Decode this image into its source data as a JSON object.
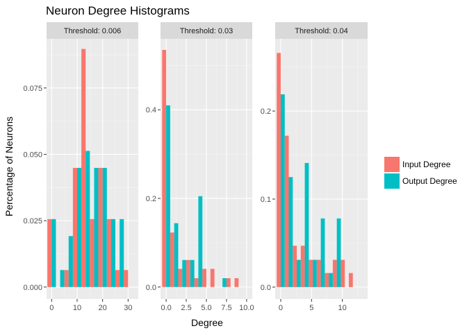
{
  "chart_data": {
    "type": "bar",
    "title": "Neuron Degree Histograms",
    "xlabel": "Degree",
    "ylabel": "Percentage of Neurons",
    "legend": {
      "position": "right",
      "entries": [
        {
          "name": "Input Degree",
          "color": "#F8766D"
        },
        {
          "name": "Output Degree",
          "color": "#00BFC4"
        }
      ]
    },
    "grid": true,
    "panels": [
      {
        "strip": "Threshold: 0.006",
        "xlim": [
          -2,
          34
        ],
        "ylim": [
          -0.0045,
          0.0935
        ],
        "xticks": [
          0,
          10,
          20,
          30
        ],
        "xtick_labels": [
          "0",
          "10",
          "20",
          "30"
        ],
        "yticks": [
          0,
          0.025,
          0.05,
          0.075
        ],
        "ytick_labels": [
          "0.000",
          "0.025",
          "0.050",
          "0.075"
        ],
        "bin_width": 3.33,
        "bin_centers": [
          0,
          3.33,
          6.67,
          10,
          13.33,
          16.67,
          20,
          23.33,
          26.67,
          30
        ],
        "series": [
          {
            "name": "Input Degree",
            "values": [
              0.0256,
              0.0,
              0.0064,
              0.0449,
              0.0897,
              0.0256,
              0.0449,
              0.0256,
              0.0064,
              0.0064
            ]
          },
          {
            "name": "Output Degree",
            "values": [
              0.0256,
              0.0064,
              0.0192,
              0.0449,
              0.0513,
              0.0449,
              0.0449,
              0.0256,
              0.0256,
              0.0
            ]
          }
        ]
      },
      {
        "strip": "Threshold: 0.03",
        "xlim": [
          -0.7,
          10.7
        ],
        "ylim": [
          -0.027,
          0.56
        ],
        "xticks": [
          0,
          2.5,
          5,
          7.5,
          10
        ],
        "xtick_labels": [
          "0.0",
          "2.5",
          "5.0",
          "7.5",
          "10.0"
        ],
        "yticks": [
          0,
          0.2,
          0.4
        ],
        "ytick_labels": [
          "0.0",
          "0.2",
          "0.4"
        ],
        "bin_width": 1.0,
        "bin_centers": [
          0,
          1,
          2,
          3,
          4,
          5,
          6,
          7,
          8,
          9,
          10
        ],
        "series": [
          {
            "name": "Input Degree",
            "values": [
              0.535,
              0.123,
              0.041,
              0.061,
              0.02,
              0.041,
              0.041,
              0.0,
              0.02,
              0.02,
              0.0
            ]
          },
          {
            "name": "Output Degree",
            "values": [
              0.41,
              0.144,
              0.061,
              0.061,
              0.205,
              0.0,
              0.0,
              0.02,
              0.0,
              0.0,
              0.0
            ]
          }
        ]
      },
      {
        "strip": "Threshold: 0.04",
        "xlim": [
          -0.9,
          14.1
        ],
        "ylim": [
          -0.0135,
          0.282
        ],
        "xticks": [
          0,
          5,
          10
        ],
        "xtick_labels": [
          "0",
          "5",
          "10"
        ],
        "yticks": [
          0,
          0.1,
          0.2
        ],
        "ytick_labels": [
          "0.0",
          "0.1",
          "0.2"
        ],
        "bin_width": 1.3,
        "bin_centers": [
          0,
          1.3,
          2.6,
          3.9,
          5.2,
          6.5,
          7.8,
          9.1,
          10.4,
          11.7,
          13.0
        ],
        "series": [
          {
            "name": "Input Degree",
            "values": [
              0.266,
              0.172,
              0.047,
              0.047,
              0.031,
              0.031,
              0.016,
              0.031,
              0.031,
              0.016,
              0.0
            ]
          },
          {
            "name": "Output Degree",
            "values": [
              0.219,
              0.125,
              0.031,
              0.141,
              0.031,
              0.078,
              0.016,
              0.078,
              0.0,
              0.0,
              0.0
            ]
          }
        ]
      }
    ]
  }
}
